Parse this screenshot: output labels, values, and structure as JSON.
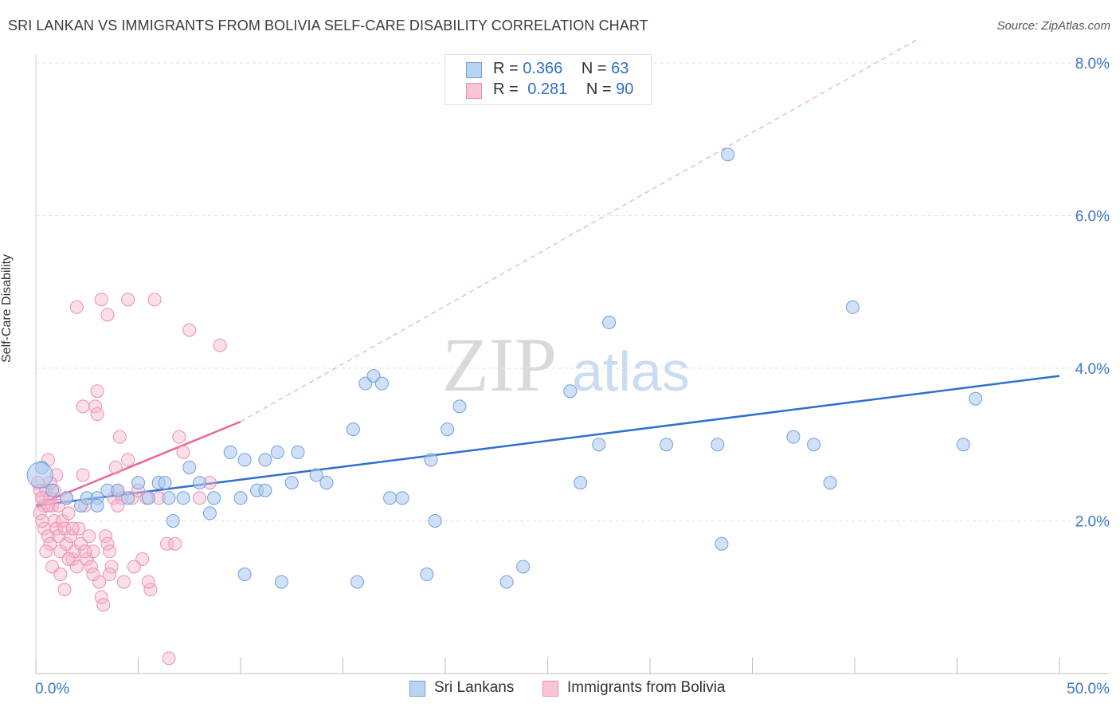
{
  "header": {
    "title": "SRI LANKAN VS IMMIGRANTS FROM BOLIVIA SELF-CARE DISABILITY CORRELATION CHART",
    "source": "Source: ZipAtlas.com"
  },
  "watermark": {
    "zip": "ZIP",
    "atlas": "atlas"
  },
  "legend": {
    "rows": [
      {
        "r_label": "R = ",
        "r_value": "0.366",
        "n_label": "N = ",
        "n_value": "63"
      },
      {
        "r_label": "R = ",
        "r_value": "0.281",
        "n_label": "N = ",
        "n_value": "90"
      }
    ]
  },
  "bottom_legend": {
    "series1": "Sri Lankans",
    "series2": "Immigrants from Bolivia"
  },
  "chart_data": {
    "type": "scatter",
    "title": "SRI LANKAN VS IMMIGRANTS FROM BOLIVIA SELF-CARE DISABILITY CORRELATION CHART",
    "xlabel": "",
    "ylabel": "Self-Care Disability",
    "xlim": [
      0,
      50
    ],
    "ylim": [
      0,
      8
    ],
    "x_tick_labels": [
      "0.0%",
      "50.0%"
    ],
    "y_tick_labels": [
      "2.0%",
      "4.0%",
      "6.0%",
      "8.0%"
    ],
    "y_ticks": [
      2,
      4,
      6,
      8
    ],
    "grid": true,
    "colors": {
      "blue": "#2f6fcf",
      "blue_fill": "#a9c8f0",
      "pink": "#e8679a",
      "pink_fill": "#f5b6cc"
    },
    "series": [
      {
        "name": "Sri Lankans",
        "r": 0.366,
        "n": 63,
        "trend": {
          "x0": 0,
          "y0": 2.2,
          "x1": 50,
          "y1": 3.9
        },
        "points": [
          [
            0.3,
            2.7
          ],
          [
            0.8,
            2.4
          ],
          [
            1.5,
            2.3
          ],
          [
            2.2,
            2.2
          ],
          [
            2.5,
            2.3
          ],
          [
            3.0,
            2.3
          ],
          [
            3.5,
            2.4
          ],
          [
            3.0,
            2.2
          ],
          [
            4.0,
            2.4
          ],
          [
            4.5,
            2.3
          ],
          [
            5.0,
            2.5
          ],
          [
            5.5,
            2.3
          ],
          [
            6.0,
            2.5
          ],
          [
            6.3,
            2.5
          ],
          [
            6.5,
            2.3
          ],
          [
            6.7,
            2.0
          ],
          [
            7.2,
            2.3
          ],
          [
            7.5,
            2.7
          ],
          [
            8.0,
            2.5
          ],
          [
            8.5,
            2.1
          ],
          [
            8.7,
            2.3
          ],
          [
            9.5,
            2.9
          ],
          [
            10.0,
            2.3
          ],
          [
            10.2,
            2.8
          ],
          [
            10.8,
            2.4
          ],
          [
            11.2,
            2.4
          ],
          [
            11.2,
            2.8
          ],
          [
            11.8,
            2.9
          ],
          [
            12.5,
            2.5
          ],
          [
            12.8,
            2.9
          ],
          [
            13.7,
            2.6
          ],
          [
            14.2,
            2.5
          ],
          [
            15.5,
            3.2
          ],
          [
            16.1,
            3.8
          ],
          [
            16.5,
            3.9
          ],
          [
            16.9,
            3.8
          ],
          [
            17.3,
            2.3
          ],
          [
            17.9,
            2.3
          ],
          [
            19.3,
            2.8
          ],
          [
            19.5,
            2.0
          ],
          [
            20.1,
            3.2
          ],
          [
            20.7,
            3.5
          ],
          [
            10.2,
            1.3
          ],
          [
            12.0,
            1.2
          ],
          [
            15.7,
            1.2
          ],
          [
            19.1,
            1.3
          ],
          [
            23.0,
            1.2
          ],
          [
            23.8,
            1.4
          ],
          [
            26.1,
            3.7
          ],
          [
            26.6,
            2.5
          ],
          [
            27.5,
            3.0
          ],
          [
            28.0,
            4.6
          ],
          [
            30.8,
            3.0
          ],
          [
            33.3,
            3.0
          ],
          [
            33.5,
            1.7
          ],
          [
            33.8,
            6.8
          ],
          [
            37.0,
            3.1
          ],
          [
            38.0,
            3.0
          ],
          [
            38.8,
            2.5
          ],
          [
            39.9,
            4.8
          ],
          [
            45.3,
            3.0
          ],
          [
            45.9,
            3.6
          ],
          [
            0.2,
            2.6
          ]
        ]
      },
      {
        "name": "Immigrants from Bolivia",
        "r": 0.281,
        "n": 90,
        "trend": {
          "x0": 0,
          "y0": 2.2,
          "x1": 10,
          "y1": 3.3,
          "dash_x1": 43,
          "dash_y1": 8.3
        },
        "points": [
          [
            0.1,
            2.5
          ],
          [
            0.2,
            2.4
          ],
          [
            0.3,
            2.3
          ],
          [
            0.4,
            2.2
          ],
          [
            0.5,
            2.4
          ],
          [
            0.6,
            2.8
          ],
          [
            0.7,
            2.3
          ],
          [
            0.8,
            2.2
          ],
          [
            0.2,
            2.1
          ],
          [
            0.4,
            1.9
          ],
          [
            0.6,
            1.8
          ],
          [
            0.7,
            1.7
          ],
          [
            0.9,
            2.0
          ],
          [
            1.0,
            1.9
          ],
          [
            1.1,
            1.8
          ],
          [
            1.2,
            1.6
          ],
          [
            1.3,
            2.0
          ],
          [
            1.4,
            1.9
          ],
          [
            1.5,
            1.7
          ],
          [
            1.6,
            2.1
          ],
          [
            1.7,
            1.8
          ],
          [
            1.8,
            1.5
          ],
          [
            1.9,
            1.6
          ],
          [
            2.0,
            1.4
          ],
          [
            2.1,
            1.9
          ],
          [
            2.2,
            1.7
          ],
          [
            2.3,
            2.6
          ],
          [
            2.4,
            2.2
          ],
          [
            2.5,
            1.5
          ],
          [
            2.6,
            1.8
          ],
          [
            2.7,
            1.4
          ],
          [
            2.8,
            1.6
          ],
          [
            2.9,
            3.5
          ],
          [
            3.0,
            3.7
          ],
          [
            3.1,
            1.2
          ],
          [
            3.2,
            1.0
          ],
          [
            3.3,
            0.9
          ],
          [
            3.4,
            1.8
          ],
          [
            3.5,
            1.7
          ],
          [
            3.6,
            1.6
          ],
          [
            3.7,
            1.4
          ],
          [
            3.8,
            2.3
          ],
          [
            3.9,
            2.7
          ],
          [
            4.0,
            2.4
          ],
          [
            4.1,
            3.1
          ],
          [
            4.2,
            2.3
          ],
          [
            4.3,
            1.2
          ],
          [
            4.5,
            2.8
          ],
          [
            4.7,
            2.3
          ],
          [
            5.0,
            2.4
          ],
          [
            5.2,
            1.5
          ],
          [
            5.4,
            2.3
          ],
          [
            5.6,
            1.1
          ],
          [
            5.8,
            4.9
          ],
          [
            6.0,
            2.3
          ],
          [
            6.4,
            1.7
          ],
          [
            6.8,
            1.7
          ],
          [
            7.0,
            3.1
          ],
          [
            7.2,
            2.9
          ],
          [
            7.5,
            4.5
          ],
          [
            8.0,
            2.3
          ],
          [
            8.5,
            2.5
          ],
          [
            9.0,
            4.3
          ],
          [
            2.0,
            4.8
          ],
          [
            3.2,
            4.9
          ],
          [
            3.5,
            4.7
          ],
          [
            4.5,
            4.9
          ],
          [
            3.0,
            3.4
          ],
          [
            2.3,
            3.5
          ],
          [
            1.5,
            2.3
          ],
          [
            0.9,
            2.4
          ],
          [
            1.1,
            2.2
          ],
          [
            0.3,
            2.0
          ],
          [
            0.5,
            1.6
          ],
          [
            0.8,
            1.4
          ],
          [
            1.2,
            1.3
          ],
          [
            1.4,
            1.1
          ],
          [
            1.6,
            1.5
          ],
          [
            2.8,
            1.3
          ],
          [
            3.6,
            1.3
          ],
          [
            6.5,
            0.2
          ],
          [
            4.0,
            2.2
          ],
          [
            1.0,
            2.6
          ],
          [
            0.7,
            2.5
          ],
          [
            0.3,
            2.3
          ],
          [
            0.6,
            2.2
          ],
          [
            1.8,
            1.9
          ],
          [
            2.4,
            1.6
          ],
          [
            4.8,
            1.4
          ],
          [
            5.5,
            1.2
          ]
        ]
      }
    ]
  }
}
